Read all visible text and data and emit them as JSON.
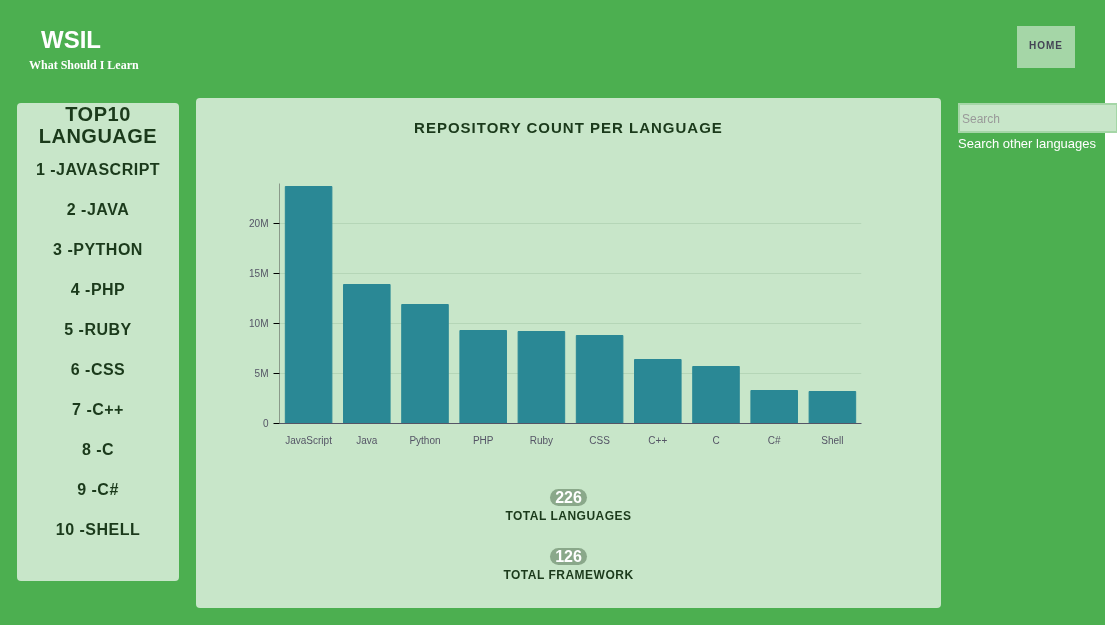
{
  "chart_data": [
    {
      "type": "other",
      "title": "WSIL",
      "subtitle": "What Should I Learn",
      "annotations": [
        "HOME",
        "Search",
        "Search other languages"
      ]
    },
    {
      "type": "other",
      "title": "TOP10 LANGUAGE",
      "annotations": [
        "1 -JAVASCRIPT",
        "2 -JAVA",
        "3 -PYTHON",
        "4 -PHP",
        "5 -RUBY",
        "6 -CSS",
        "7 -C++",
        "8 -C",
        "9 -C#",
        "10 -SHELL"
      ]
    },
    {
      "type": "bar",
      "title": "REPOSITORY COUNT PER LANGUAGE",
      "categories": [
        "JavaScript",
        "Java",
        "Python",
        "PHP",
        "Ruby",
        "CSS",
        "C++",
        "C",
        "C#",
        "Shell"
      ],
      "values": [
        23700000,
        13900000,
        11900000,
        9300000,
        9200000,
        8800000,
        6400000,
        5700000,
        3300000,
        3200000
      ],
      "color": "#2a8895",
      "ylim": [
        0,
        24000000
      ],
      "yticks": [
        0,
        {
          "value": 5000000,
          "label": "5M"
        },
        {
          "value": 10000000,
          "label": "10M"
        },
        {
          "value": 15000000,
          "label": "15M"
        },
        {
          "value": 20000000,
          "label": "20M"
        }
      ],
      "grid": "y",
      "annotations": [
        "226",
        "TOTAL LANGUAGES",
        "126",
        "TOTAL FRAMEWORK"
      ]
    }
  ]
}
